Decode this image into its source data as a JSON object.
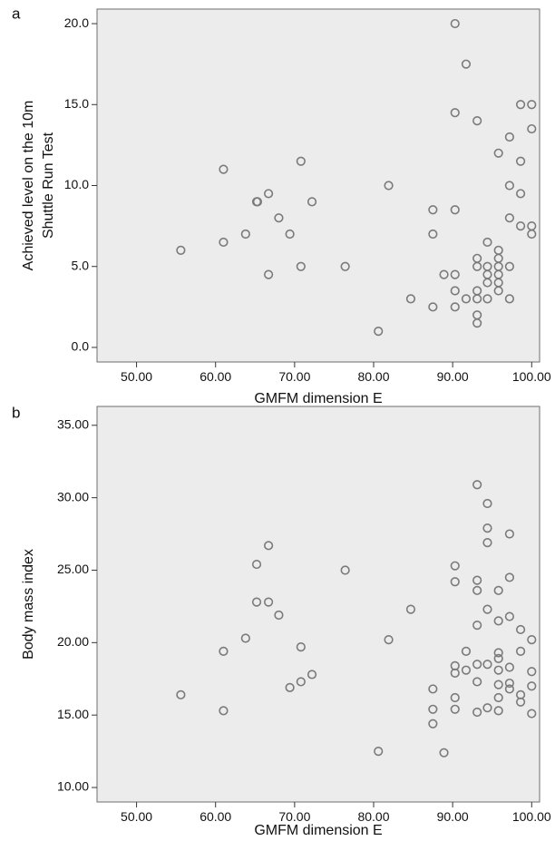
{
  "panel_labels": [
    "a",
    "b"
  ],
  "colors": {
    "plot_background": "#ececec",
    "marker_stroke": "#7a7a7a",
    "frame": "#6e6e6e"
  },
  "chart_data": [
    {
      "type": "scatter",
      "panel": "a",
      "xlabel": "GMFM dimension E",
      "ylabel": [
        "Achieved level on the 10m",
        "Shuttle Run Test"
      ],
      "xlim": [
        45,
        101
      ],
      "ylim": [
        -0.9,
        20.9
      ],
      "x_ticks": [
        "50.00",
        "60.00",
        "70.00",
        "80.00",
        "90.00",
        "100.00"
      ],
      "x_tick_values": [
        50,
        60,
        70,
        80,
        90,
        100
      ],
      "y_ticks": [
        "0.0",
        "5.0",
        "10.0",
        "15.0",
        "20.0"
      ],
      "y_tick_values": [
        0,
        5,
        10,
        15,
        20
      ],
      "grid": false,
      "marker": "open-circle",
      "points": [
        [
          55.6,
          6.0
        ],
        [
          61.0,
          11.0
        ],
        [
          61.0,
          6.5
        ],
        [
          63.8,
          7.0
        ],
        [
          65.2,
          9.0
        ],
        [
          65.3,
          9.0
        ],
        [
          66.7,
          9.5
        ],
        [
          66.7,
          4.5
        ],
        [
          68.0,
          8.0
        ],
        [
          69.4,
          7.0
        ],
        [
          70.8,
          11.5
        ],
        [
          70.8,
          5.0
        ],
        [
          72.2,
          9.0
        ],
        [
          76.4,
          5.0
        ],
        [
          80.6,
          1.0
        ],
        [
          81.9,
          10.0
        ],
        [
          84.7,
          3.0
        ],
        [
          87.5,
          8.5
        ],
        [
          87.5,
          7.0
        ],
        [
          87.5,
          2.5
        ],
        [
          88.9,
          4.5
        ],
        [
          90.3,
          20.0
        ],
        [
          90.3,
          14.5
        ],
        [
          90.3,
          8.5
        ],
        [
          90.3,
          4.5
        ],
        [
          90.3,
          3.5
        ],
        [
          90.3,
          2.5
        ],
        [
          91.7,
          17.5
        ],
        [
          91.7,
          3.0
        ],
        [
          93.1,
          14.0
        ],
        [
          93.1,
          5.5
        ],
        [
          93.1,
          5.0
        ],
        [
          93.1,
          3.5
        ],
        [
          93.1,
          3.0
        ],
        [
          93.1,
          2.0
        ],
        [
          93.1,
          1.5
        ],
        [
          94.4,
          6.5
        ],
        [
          94.4,
          5.0
        ],
        [
          94.4,
          4.5
        ],
        [
          94.4,
          4.0
        ],
        [
          94.4,
          3.0
        ],
        [
          95.8,
          12.0
        ],
        [
          95.8,
          6.0
        ],
        [
          95.8,
          5.5
        ],
        [
          95.8,
          5.0
        ],
        [
          95.8,
          4.5
        ],
        [
          95.8,
          4.0
        ],
        [
          95.8,
          3.5
        ],
        [
          97.2,
          13.0
        ],
        [
          97.2,
          10.0
        ],
        [
          97.2,
          8.0
        ],
        [
          97.2,
          5.0
        ],
        [
          97.2,
          3.0
        ],
        [
          98.6,
          15.0
        ],
        [
          98.6,
          11.5
        ],
        [
          98.6,
          9.5
        ],
        [
          98.6,
          7.5
        ],
        [
          100.0,
          15.0
        ],
        [
          100.0,
          13.5
        ],
        [
          100.0,
          7.5
        ],
        [
          100.0,
          7.0
        ]
      ]
    },
    {
      "type": "scatter",
      "panel": "b",
      "xlabel": "GMFM dimension E",
      "ylabel": [
        "Body mass index"
      ],
      "xlim": [
        45,
        101
      ],
      "ylim": [
        9.0,
        36.3
      ],
      "x_ticks": [
        "50.00",
        "60.00",
        "70.00",
        "80.00",
        "90.00",
        "100.00"
      ],
      "x_tick_values": [
        50,
        60,
        70,
        80,
        90,
        100
      ],
      "y_ticks": [
        "10.00",
        "15.00",
        "20.00",
        "25.00",
        "30.00",
        "35.00"
      ],
      "y_tick_values": [
        10,
        15,
        20,
        25,
        30,
        35
      ],
      "grid": false,
      "marker": "open-circle",
      "points": [
        [
          55.6,
          16.4
        ],
        [
          61.0,
          19.4
        ],
        [
          61.0,
          15.3
        ],
        [
          63.8,
          20.3
        ],
        [
          65.2,
          25.4
        ],
        [
          65.2,
          22.8
        ],
        [
          66.7,
          26.7
        ],
        [
          66.7,
          22.8
        ],
        [
          68.0,
          21.9
        ],
        [
          69.4,
          16.9
        ],
        [
          70.8,
          19.7
        ],
        [
          70.8,
          17.3
        ],
        [
          72.2,
          17.8
        ],
        [
          76.4,
          25.0
        ],
        [
          80.6,
          12.5
        ],
        [
          81.9,
          20.2
        ],
        [
          84.7,
          22.3
        ],
        [
          87.5,
          16.8
        ],
        [
          87.5,
          15.4
        ],
        [
          87.5,
          14.4
        ],
        [
          88.9,
          12.4
        ],
        [
          90.3,
          25.3
        ],
        [
          90.3,
          24.2
        ],
        [
          90.3,
          18.4
        ],
        [
          90.3,
          17.9
        ],
        [
          90.3,
          16.2
        ],
        [
          90.3,
          15.4
        ],
        [
          91.7,
          19.4
        ],
        [
          91.7,
          18.1
        ],
        [
          93.1,
          30.9
        ],
        [
          93.1,
          24.3
        ],
        [
          93.1,
          23.6
        ],
        [
          93.1,
          21.2
        ],
        [
          93.1,
          18.5
        ],
        [
          93.1,
          17.3
        ],
        [
          93.1,
          15.2
        ],
        [
          94.4,
          29.6
        ],
        [
          94.4,
          27.9
        ],
        [
          94.4,
          26.9
        ],
        [
          94.4,
          22.3
        ],
        [
          94.4,
          18.5
        ],
        [
          94.4,
          15.5
        ],
        [
          95.8,
          23.6
        ],
        [
          95.8,
          21.5
        ],
        [
          95.8,
          19.3
        ],
        [
          95.8,
          18.9
        ],
        [
          95.8,
          18.1
        ],
        [
          95.8,
          17.1
        ],
        [
          95.8,
          16.2
        ],
        [
          95.8,
          15.3
        ],
        [
          97.2,
          27.5
        ],
        [
          97.2,
          24.5
        ],
        [
          97.2,
          21.8
        ],
        [
          97.2,
          18.3
        ],
        [
          97.2,
          17.2
        ],
        [
          97.2,
          16.8
        ],
        [
          98.6,
          20.9
        ],
        [
          98.6,
          19.4
        ],
        [
          98.6,
          16.4
        ],
        [
          98.6,
          15.9
        ],
        [
          100.0,
          20.2
        ],
        [
          100.0,
          18.0
        ],
        [
          100.0,
          17.0
        ],
        [
          100.0,
          15.1
        ]
      ]
    }
  ]
}
